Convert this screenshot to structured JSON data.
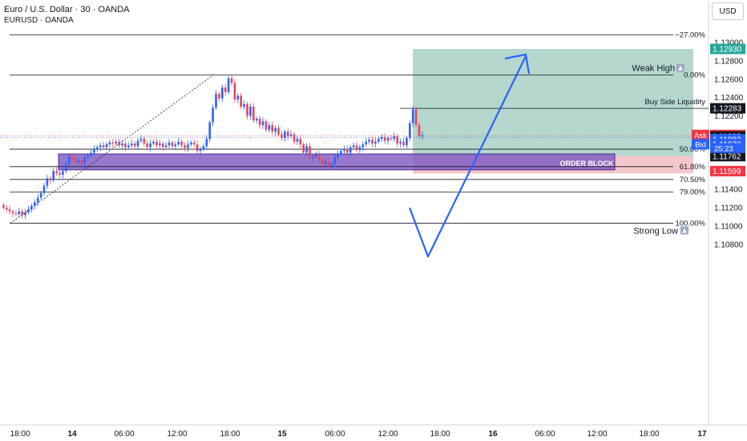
{
  "header": {
    "title": "Euro / U.S. Dollar · 30 · OANDA",
    "subtitle": "EURUSD · OANDA",
    "currency_button": "USD"
  },
  "colors": {
    "up": "#2962ff",
    "down": "#e8445a",
    "target_zone": "#9cc9be",
    "stop_zone": "#f1b9bd",
    "order_block": "#7e57c2",
    "arrow": "#2962ff",
    "fib_line": "#131722"
  },
  "chart_data": {
    "type": "candlestick",
    "symbol": "EURUSD",
    "timeframe": "30",
    "ylim": [
      1.1069,
      1.1315
    ],
    "y_ticks": [
      "1.13000",
      "1.12800",
      "1.12600",
      "1.12400",
      "1.12200",
      "1.12000",
      "1.11800",
      "1.11600",
      "1.11400",
      "1.11200",
      "1.11000",
      "1.10800"
    ],
    "x_ticks": [
      "18:00",
      "14",
      "06:00",
      "12:00",
      "18:00",
      "15",
      "06:00",
      "12:00",
      "18:00",
      "16",
      "06:00",
      "12:00",
      "18:00",
      "17"
    ],
    "x_bold_ticks": [
      "14",
      "15",
      "16",
      "17"
    ],
    "candles_close": [
      1.112,
      1.1118,
      1.1116,
      1.1114,
      1.1113,
      1.1116,
      1.1112,
      1.1115,
      1.1118,
      1.1122,
      1.1126,
      1.1131,
      1.1136,
      1.1144,
      1.1152,
      1.115,
      1.116,
      1.1158,
      1.1156,
      1.116,
      1.1168,
      1.1176,
      1.1173,
      1.117,
      1.1172,
      1.1168,
      1.1175,
      1.1177,
      1.118,
      1.1184,
      1.1186,
      1.1188,
      1.1186,
      1.1189,
      1.1191,
      1.119,
      1.1192,
      1.1188,
      1.119,
      1.1186,
      1.1188,
      1.119,
      1.1187,
      1.1193,
      1.1195,
      1.119,
      1.1186,
      1.119,
      1.1192,
      1.1188,
      1.119,
      1.1186,
      1.1188,
      1.1191,
      1.1187,
      1.1189,
      1.1192,
      1.1188,
      1.1185,
      1.1189,
      1.1191,
      1.1189,
      1.1182,
      1.1184,
      1.1187,
      1.1195,
      1.1213,
      1.1229,
      1.1244,
      1.1239,
      1.1251,
      1.1246,
      1.1261,
      1.1256,
      1.1238,
      1.1242,
      1.123,
      1.1233,
      1.122,
      1.123,
      1.1215,
      1.1217,
      1.121,
      1.1214,
      1.1205,
      1.121,
      1.1203,
      1.1207,
      1.12,
      1.1196,
      1.1203,
      1.1198,
      1.12,
      1.1192,
      1.1195,
      1.1189,
      1.118,
      1.1187,
      1.1174,
      1.1176,
      1.1178,
      1.1172,
      1.1168,
      1.117,
      1.1166,
      1.1168,
      1.1175,
      1.1178,
      1.1182,
      1.1184,
      1.118,
      1.1186,
      1.1188,
      1.1183,
      1.1186,
      1.1189,
      1.1192,
      1.1194,
      1.119,
      1.1192,
      1.1195,
      1.1197,
      1.1193,
      1.1196,
      1.1195,
      1.1198,
      1.119,
      1.1192,
      1.1188,
      1.1196,
      1.1212,
      1.1227,
      1.121,
      1.1198,
      1.1199
    ],
    "last_candle_time": "15 13:30",
    "levels": [
      {
        "name": "fib-27",
        "label": "−27.00%",
        "price": 1.13082
      },
      {
        "name": "fib-0",
        "label": "0.00%",
        "price": 1.12645
      },
      {
        "name": "fib-50",
        "label": "50.00%",
        "price": 1.11838
      },
      {
        "name": "fib-618",
        "label": "61.80%",
        "price": 1.11648
      },
      {
        "name": "fib-705",
        "label": "70.50%",
        "price": 1.11508
      },
      {
        "name": "fib-79",
        "label": "79.00%",
        "price": 1.11371
      },
      {
        "name": "fib-100",
        "label": "100.00%",
        "price": 1.11032
      }
    ],
    "liquidity_line": {
      "label": "Buy Side Liquidity",
      "price": 1.12283
    },
    "weak_high_label": "Weak High",
    "strong_low_label": "Strong Low",
    "order_block": {
      "label": "ORDER BLOCK",
      "top": 1.11768,
      "bottom": 1.11683
    },
    "position": {
      "entry": 1.11762,
      "target": 1.1293,
      "stop": 1.11599
    },
    "price_badges": [
      {
        "name": "target-price-badge",
        "text": "1.12930",
        "price": 1.1293,
        "bg": "#26a69a"
      },
      {
        "name": "liquidity-price-badge",
        "text": "1.12283",
        "price": 1.12283,
        "bg": "#131722"
      },
      {
        "name": "ask-price-badge",
        "prefix": "Ask",
        "text": "1.11993",
        "price": 1.11993,
        "bg": "#f23645"
      },
      {
        "name": "last-price-badge",
        "text": "1.11982",
        "price": 1.11977,
        "bg": "#131722"
      },
      {
        "name": "current-price-badge",
        "text": "1.11982",
        "price": 1.11945,
        "bg": "#2962ff"
      },
      {
        "name": "bid-price-badge",
        "prefix": "Bid",
        "text": "1.11978",
        "price": 1.11892,
        "bg": "#2962ff"
      },
      {
        "name": "entry-price-badge",
        "text": "1.11762",
        "price": 1.11762,
        "bg": "#131722"
      },
      {
        "name": "stop-price-badge",
        "text": "1.11599",
        "price": 1.11599,
        "bg": "#f23645"
      }
    ],
    "countdown": "25:23"
  }
}
